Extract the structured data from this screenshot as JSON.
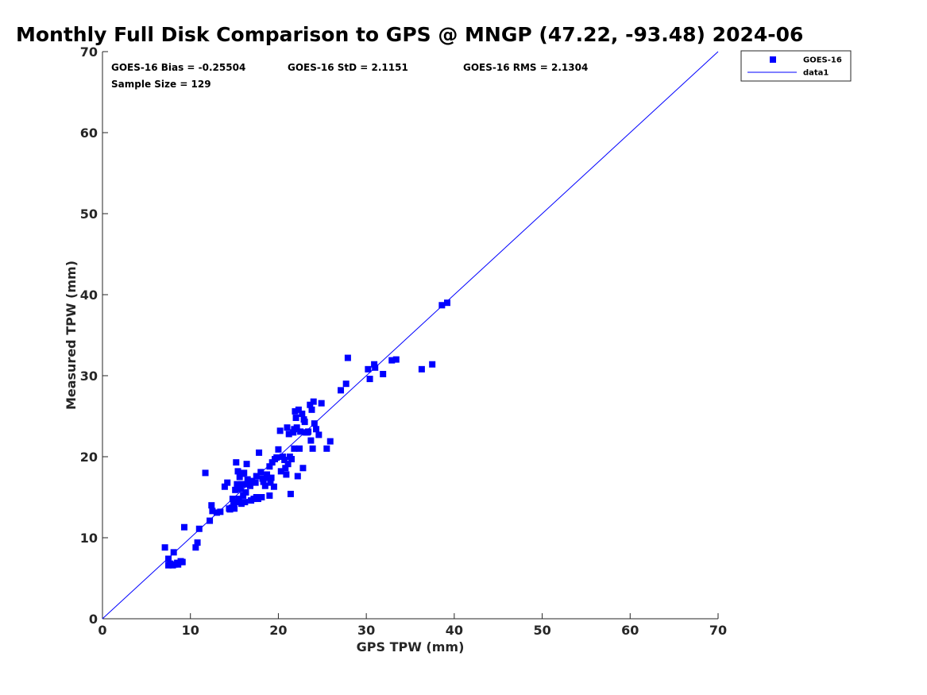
{
  "chart_data": {
    "type": "scatter",
    "title": "Monthly Full Disk Comparison to GPS @ MNGP (47.22, -93.48) 2024-06",
    "xlabel": "GPS TPW (mm)",
    "ylabel": "Measured TPW (mm)",
    "xlim": [
      0,
      70
    ],
    "ylim": [
      0,
      70
    ],
    "xticks": [
      "0",
      "10",
      "20",
      "30",
      "40",
      "50",
      "60",
      "70"
    ],
    "yticks": [
      "0",
      "10",
      "20",
      "30",
      "40",
      "50",
      "60",
      "70"
    ],
    "grid": false,
    "legend_position": "top-right, outside plot",
    "stats": {
      "bias": "GOES-16 Bias = -0.25504",
      "std": "GOES-16 StD = 2.1151",
      "rms": "GOES-16 RMS = 2.1304",
      "sample": "Sample Size = 129"
    },
    "series": [
      {
        "name": "GOES-16",
        "marker": "square",
        "color": "#0000ff",
        "points": [
          [
            7.1,
            8.8
          ],
          [
            7.5,
            6.6
          ],
          [
            7.5,
            7.4
          ],
          [
            7.7,
            6.8
          ],
          [
            8.0,
            6.6
          ],
          [
            8.1,
            8.2
          ],
          [
            8.2,
            6.7
          ],
          [
            8.5,
            6.9
          ],
          [
            8.6,
            6.7
          ],
          [
            8.9,
            7.1
          ],
          [
            9.1,
            7.0
          ],
          [
            9.3,
            11.3
          ],
          [
            10.6,
            8.8
          ],
          [
            10.8,
            9.4
          ],
          [
            11.0,
            11.1
          ],
          [
            11.7,
            18.0
          ],
          [
            12.2,
            12.1
          ],
          [
            12.4,
            14.0
          ],
          [
            12.5,
            13.3
          ],
          [
            13.0,
            13.1
          ],
          [
            13.4,
            13.2
          ],
          [
            13.9,
            16.3
          ],
          [
            14.2,
            16.8
          ],
          [
            14.4,
            13.6
          ],
          [
            14.7,
            13.7
          ],
          [
            14.8,
            14.8
          ],
          [
            14.9,
            14.2
          ],
          [
            15.0,
            13.6
          ],
          [
            15.1,
            15.9
          ],
          [
            15.2,
            19.3
          ],
          [
            15.3,
            14.4
          ],
          [
            15.3,
            16.6
          ],
          [
            15.4,
            18.2
          ],
          [
            15.5,
            14.8
          ],
          [
            15.6,
            17.5
          ],
          [
            15.7,
            16.0
          ],
          [
            15.8,
            14.2
          ],
          [
            15.9,
            17.9
          ],
          [
            16.0,
            15.2
          ],
          [
            16.0,
            16.6
          ],
          [
            16.1,
            18.0
          ],
          [
            16.2,
            14.4
          ],
          [
            16.3,
            15.6
          ],
          [
            16.4,
            19.1
          ],
          [
            16.5,
            17.2
          ],
          [
            16.7,
            16.6
          ],
          [
            16.8,
            16.4
          ],
          [
            16.9,
            14.6
          ],
          [
            17.0,
            17.0
          ],
          [
            17.2,
            14.8
          ],
          [
            17.4,
            16.8
          ],
          [
            17.5,
            17.6
          ],
          [
            17.7,
            14.8
          ],
          [
            17.8,
            20.5
          ],
          [
            18.0,
            18.1
          ],
          [
            18.1,
            15.0
          ],
          [
            18.2,
            17.3
          ],
          [
            18.3,
            16.9
          ],
          [
            18.5,
            16.4
          ],
          [
            18.7,
            17.8
          ],
          [
            18.8,
            17.4
          ],
          [
            19.0,
            18.8
          ],
          [
            19.0,
            15.2
          ],
          [
            19.2,
            17.4
          ],
          [
            19.3,
            19.3
          ],
          [
            19.5,
            16.3
          ],
          [
            19.6,
            19.7
          ],
          [
            19.8,
            19.9
          ],
          [
            20.0,
            20.9
          ],
          [
            20.2,
            23.2
          ],
          [
            20.3,
            18.2
          ],
          [
            20.5,
            20.0
          ],
          [
            20.7,
            19.6
          ],
          [
            20.8,
            18.6
          ],
          [
            20.9,
            17.8
          ],
          [
            21.0,
            23.6
          ],
          [
            21.1,
            19.1
          ],
          [
            21.2,
            22.8
          ],
          [
            21.3,
            20.0
          ],
          [
            21.4,
            15.4
          ],
          [
            21.5,
            19.7
          ],
          [
            21.7,
            23.0
          ],
          [
            21.8,
            21.0
          ],
          [
            21.9,
            25.6
          ],
          [
            22.0,
            24.8
          ],
          [
            22.1,
            23.6
          ],
          [
            22.2,
            17.6
          ],
          [
            22.3,
            25.8
          ],
          [
            22.4,
            21.0
          ],
          [
            22.5,
            23.1
          ],
          [
            22.7,
            25.3
          ],
          [
            22.8,
            18.6
          ],
          [
            22.9,
            24.6
          ],
          [
            23.0,
            24.3
          ],
          [
            23.1,
            23.0
          ],
          [
            23.4,
            23.1
          ],
          [
            23.6,
            26.4
          ],
          [
            23.7,
            22.0
          ],
          [
            23.8,
            25.8
          ],
          [
            23.9,
            21.0
          ],
          [
            24.0,
            26.8
          ],
          [
            24.1,
            24.1
          ],
          [
            24.3,
            23.4
          ],
          [
            24.6,
            22.7
          ],
          [
            24.9,
            26.6
          ],
          [
            25.5,
            21.0
          ],
          [
            25.9,
            21.9
          ],
          [
            27.1,
            28.2
          ],
          [
            27.7,
            29.0
          ],
          [
            27.9,
            32.2
          ],
          [
            30.2,
            30.8
          ],
          [
            30.4,
            29.6
          ],
          [
            30.9,
            31.4
          ],
          [
            31.0,
            31.0
          ],
          [
            31.9,
            30.2
          ],
          [
            32.9,
            31.9
          ],
          [
            33.4,
            32.0
          ],
          [
            36.3,
            30.8
          ],
          [
            37.5,
            31.4
          ],
          [
            38.6,
            38.7
          ],
          [
            39.2,
            39.0
          ],
          [
            14.5,
            13.5
          ],
          [
            15.8,
            16.6
          ],
          [
            16.9,
            16.9
          ],
          [
            17.5,
            15.0
          ],
          [
            19.1,
            16.8
          ],
          [
            21.8,
            23.4
          ],
          [
            23.3,
            23.0
          ],
          [
            9.0,
            7.0
          ]
        ]
      },
      {
        "name": "data1",
        "type": "line",
        "color": "#0000ff",
        "points": [
          [
            0,
            0
          ],
          [
            70,
            70
          ]
        ]
      }
    ]
  }
}
